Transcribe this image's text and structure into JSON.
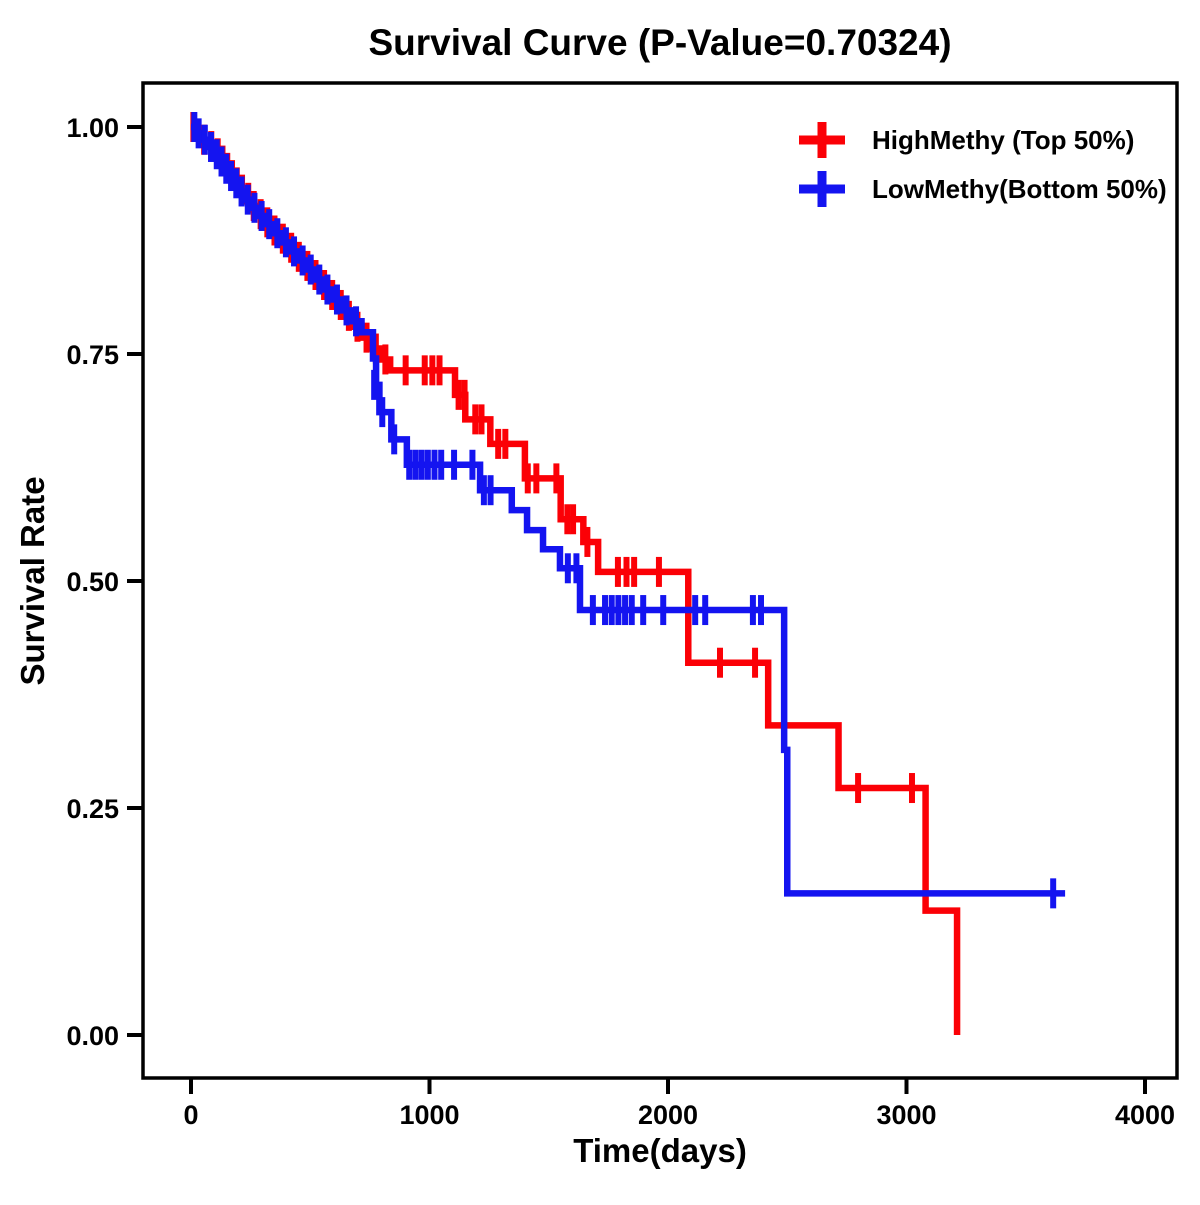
{
  "figure": {
    "title": "Survival Curve (P-Value=0.70324)",
    "p_value_text": "0.70324",
    "x_axis": {
      "label": "Time(days)",
      "tick_labels": [
        "0",
        "1000",
        "2000",
        "3000",
        "4000"
      ],
      "tick_values": [
        0,
        1000,
        2000,
        3000,
        4000
      ],
      "range": [
        0,
        4000
      ]
    },
    "y_axis": {
      "label": "Survival Rate",
      "tick_labels": [
        "0.00",
        "0.25",
        "0.50",
        "0.75",
        "1.00"
      ],
      "tick_values": [
        0,
        0.25,
        0.5,
        0.75,
        1.0
      ],
      "range": [
        0,
        1
      ]
    },
    "legend": [
      {
        "label": "HighMethy (Top 50%)",
        "color": "#fb0006",
        "marker": "plus"
      },
      {
        "label": "LowMethy(Bottom 50%)",
        "color": "#1414f0",
        "marker": "plus"
      }
    ]
  },
  "chart_data": {
    "type": "line",
    "subtype": "kaplan-meier-step",
    "title": "Survival Curve (P-Value=0.70324)",
    "xlabel": "Time(days)",
    "ylabel": "Survival Rate",
    "xlim": [
      0,
      4000
    ],
    "ylim": [
      0,
      1
    ],
    "x_ticks": [
      0,
      1000,
      2000,
      3000,
      4000
    ],
    "y_ticks": [
      0,
      0.25,
      0.5,
      0.75,
      1.0
    ],
    "grid": false,
    "legend_position": "top-right",
    "p_value": 0.70324,
    "series": [
      {
        "name": "HighMethy (Top 50%)",
        "color": "#fb0006",
        "end_time": 3212,
        "steps": [
          [
            0,
            1.0
          ],
          [
            25,
            0.993
          ],
          [
            50,
            0.986
          ],
          [
            75,
            0.979
          ],
          [
            100,
            0.971
          ],
          [
            120,
            0.963
          ],
          [
            140,
            0.955
          ],
          [
            160,
            0.947
          ],
          [
            180,
            0.939
          ],
          [
            200,
            0.931
          ],
          [
            225,
            0.922
          ],
          [
            250,
            0.913
          ],
          [
            275,
            0.904
          ],
          [
            305,
            0.895
          ],
          [
            335,
            0.886
          ],
          [
            365,
            0.877
          ],
          [
            400,
            0.867
          ],
          [
            435,
            0.857
          ],
          [
            470,
            0.847
          ],
          [
            505,
            0.837
          ],
          [
            540,
            0.826
          ],
          [
            575,
            0.815
          ],
          [
            610,
            0.804
          ],
          [
            645,
            0.792
          ],
          [
            680,
            0.78
          ],
          [
            715,
            0.768
          ],
          [
            755,
            0.756
          ],
          [
            795,
            0.744
          ],
          [
            835,
            0.732
          ],
          [
            1107,
            0.705
          ],
          [
            1150,
            0.678
          ],
          [
            1255,
            0.651
          ],
          [
            1400,
            0.613
          ],
          [
            1550,
            0.568
          ],
          [
            1645,
            0.543
          ],
          [
            1707,
            0.51
          ],
          [
            2085,
            0.41
          ],
          [
            2420,
            0.341
          ],
          [
            2715,
            0.272
          ],
          [
            3080,
            0.137
          ],
          [
            3212,
            0.0
          ]
        ],
        "censors": [
          [
            10,
            1.0
          ],
          [
            55,
            0.986
          ],
          [
            85,
            0.979
          ],
          [
            112,
            0.971
          ],
          [
            132,
            0.963
          ],
          [
            152,
            0.955
          ],
          [
            172,
            0.947
          ],
          [
            192,
            0.939
          ],
          [
            214,
            0.931
          ],
          [
            240,
            0.922
          ],
          [
            263,
            0.913
          ],
          [
            292,
            0.904
          ],
          [
            320,
            0.895
          ],
          [
            350,
            0.886
          ],
          [
            385,
            0.877
          ],
          [
            420,
            0.867
          ],
          [
            452,
            0.857
          ],
          [
            488,
            0.847
          ],
          [
            522,
            0.837
          ],
          [
            558,
            0.826
          ],
          [
            592,
            0.815
          ],
          [
            628,
            0.804
          ],
          [
            662,
            0.792
          ],
          [
            698,
            0.78
          ],
          [
            736,
            0.768
          ],
          [
            775,
            0.756
          ],
          [
            815,
            0.744
          ],
          [
            900,
            0.732
          ],
          [
            980,
            0.732
          ],
          [
            1012,
            0.732
          ],
          [
            1042,
            0.732
          ],
          [
            1122,
            0.705
          ],
          [
            1147,
            0.705
          ],
          [
            1192,
            0.678
          ],
          [
            1218,
            0.678
          ],
          [
            1288,
            0.651
          ],
          [
            1318,
            0.651
          ],
          [
            1412,
            0.613
          ],
          [
            1448,
            0.613
          ],
          [
            1532,
            0.613
          ],
          [
            1578,
            0.568
          ],
          [
            1602,
            0.568
          ],
          [
            1662,
            0.543
          ],
          [
            1790,
            0.51
          ],
          [
            1826,
            0.51
          ],
          [
            1858,
            0.51
          ],
          [
            1962,
            0.51
          ],
          [
            2218,
            0.41
          ],
          [
            2365,
            0.41
          ],
          [
            2797,
            0.272
          ],
          [
            3023,
            0.272
          ]
        ]
      },
      {
        "name": "LowMethy(Bottom 50%)",
        "color": "#1414f0",
        "end_time": 3665,
        "steps": [
          [
            0,
            1.0
          ],
          [
            20,
            0.993
          ],
          [
            45,
            0.986
          ],
          [
            70,
            0.978
          ],
          [
            95,
            0.97
          ],
          [
            115,
            0.962
          ],
          [
            135,
            0.954
          ],
          [
            155,
            0.946
          ],
          [
            175,
            0.938
          ],
          [
            200,
            0.929
          ],
          [
            225,
            0.92
          ],
          [
            250,
            0.911
          ],
          [
            280,
            0.902
          ],
          [
            310,
            0.893
          ],
          [
            345,
            0.883
          ],
          [
            380,
            0.873
          ],
          [
            415,
            0.863
          ],
          [
            450,
            0.853
          ],
          [
            485,
            0.843
          ],
          [
            520,
            0.832
          ],
          [
            555,
            0.821
          ],
          [
            595,
            0.81
          ],
          [
            635,
            0.798
          ],
          [
            675,
            0.786
          ],
          [
            715,
            0.774
          ],
          [
            763,
            0.745
          ],
          [
            776,
            0.716
          ],
          [
            790,
            0.686
          ],
          [
            840,
            0.656
          ],
          [
            905,
            0.628
          ],
          [
            1212,
            0.6
          ],
          [
            1345,
            0.578
          ],
          [
            1409,
            0.556
          ],
          [
            1476,
            0.535
          ],
          [
            1547,
            0.514
          ],
          [
            1631,
            0.468
          ],
          [
            2487,
            0.314
          ],
          [
            2500,
            0.156
          ]
        ],
        "censors": [
          [
            14,
            1.0
          ],
          [
            32,
            0.993
          ],
          [
            58,
            0.986
          ],
          [
            84,
            0.978
          ],
          [
            108,
            0.97
          ],
          [
            128,
            0.962
          ],
          [
            148,
            0.954
          ],
          [
            168,
            0.946
          ],
          [
            190,
            0.938
          ],
          [
            212,
            0.929
          ],
          [
            238,
            0.92
          ],
          [
            266,
            0.911
          ],
          [
            296,
            0.902
          ],
          [
            328,
            0.893
          ],
          [
            362,
            0.883
          ],
          [
            398,
            0.873
          ],
          [
            432,
            0.863
          ],
          [
            468,
            0.853
          ],
          [
            502,
            0.843
          ],
          [
            538,
            0.832
          ],
          [
            572,
            0.821
          ],
          [
            612,
            0.81
          ],
          [
            652,
            0.798
          ],
          [
            692,
            0.786
          ],
          [
            768,
            0.716
          ],
          [
            802,
            0.686
          ],
          [
            852,
            0.656
          ],
          [
            915,
            0.628
          ],
          [
            941,
            0.628
          ],
          [
            967,
            0.628
          ],
          [
            993,
            0.628
          ],
          [
            1021,
            0.628
          ],
          [
            1049,
            0.628
          ],
          [
            1103,
            0.628
          ],
          [
            1180,
            0.628
          ],
          [
            1228,
            0.6
          ],
          [
            1256,
            0.6
          ],
          [
            1580,
            0.514
          ],
          [
            1616,
            0.514
          ],
          [
            1685,
            0.468
          ],
          [
            1736,
            0.468
          ],
          [
            1764,
            0.468
          ],
          [
            1792,
            0.468
          ],
          [
            1820,
            0.468
          ],
          [
            1848,
            0.468
          ],
          [
            1896,
            0.468
          ],
          [
            1980,
            0.468
          ],
          [
            2114,
            0.468
          ],
          [
            2156,
            0.468
          ],
          [
            2356,
            0.468
          ],
          [
            2390,
            0.468
          ],
          [
            3615,
            0.156
          ]
        ]
      }
    ]
  }
}
